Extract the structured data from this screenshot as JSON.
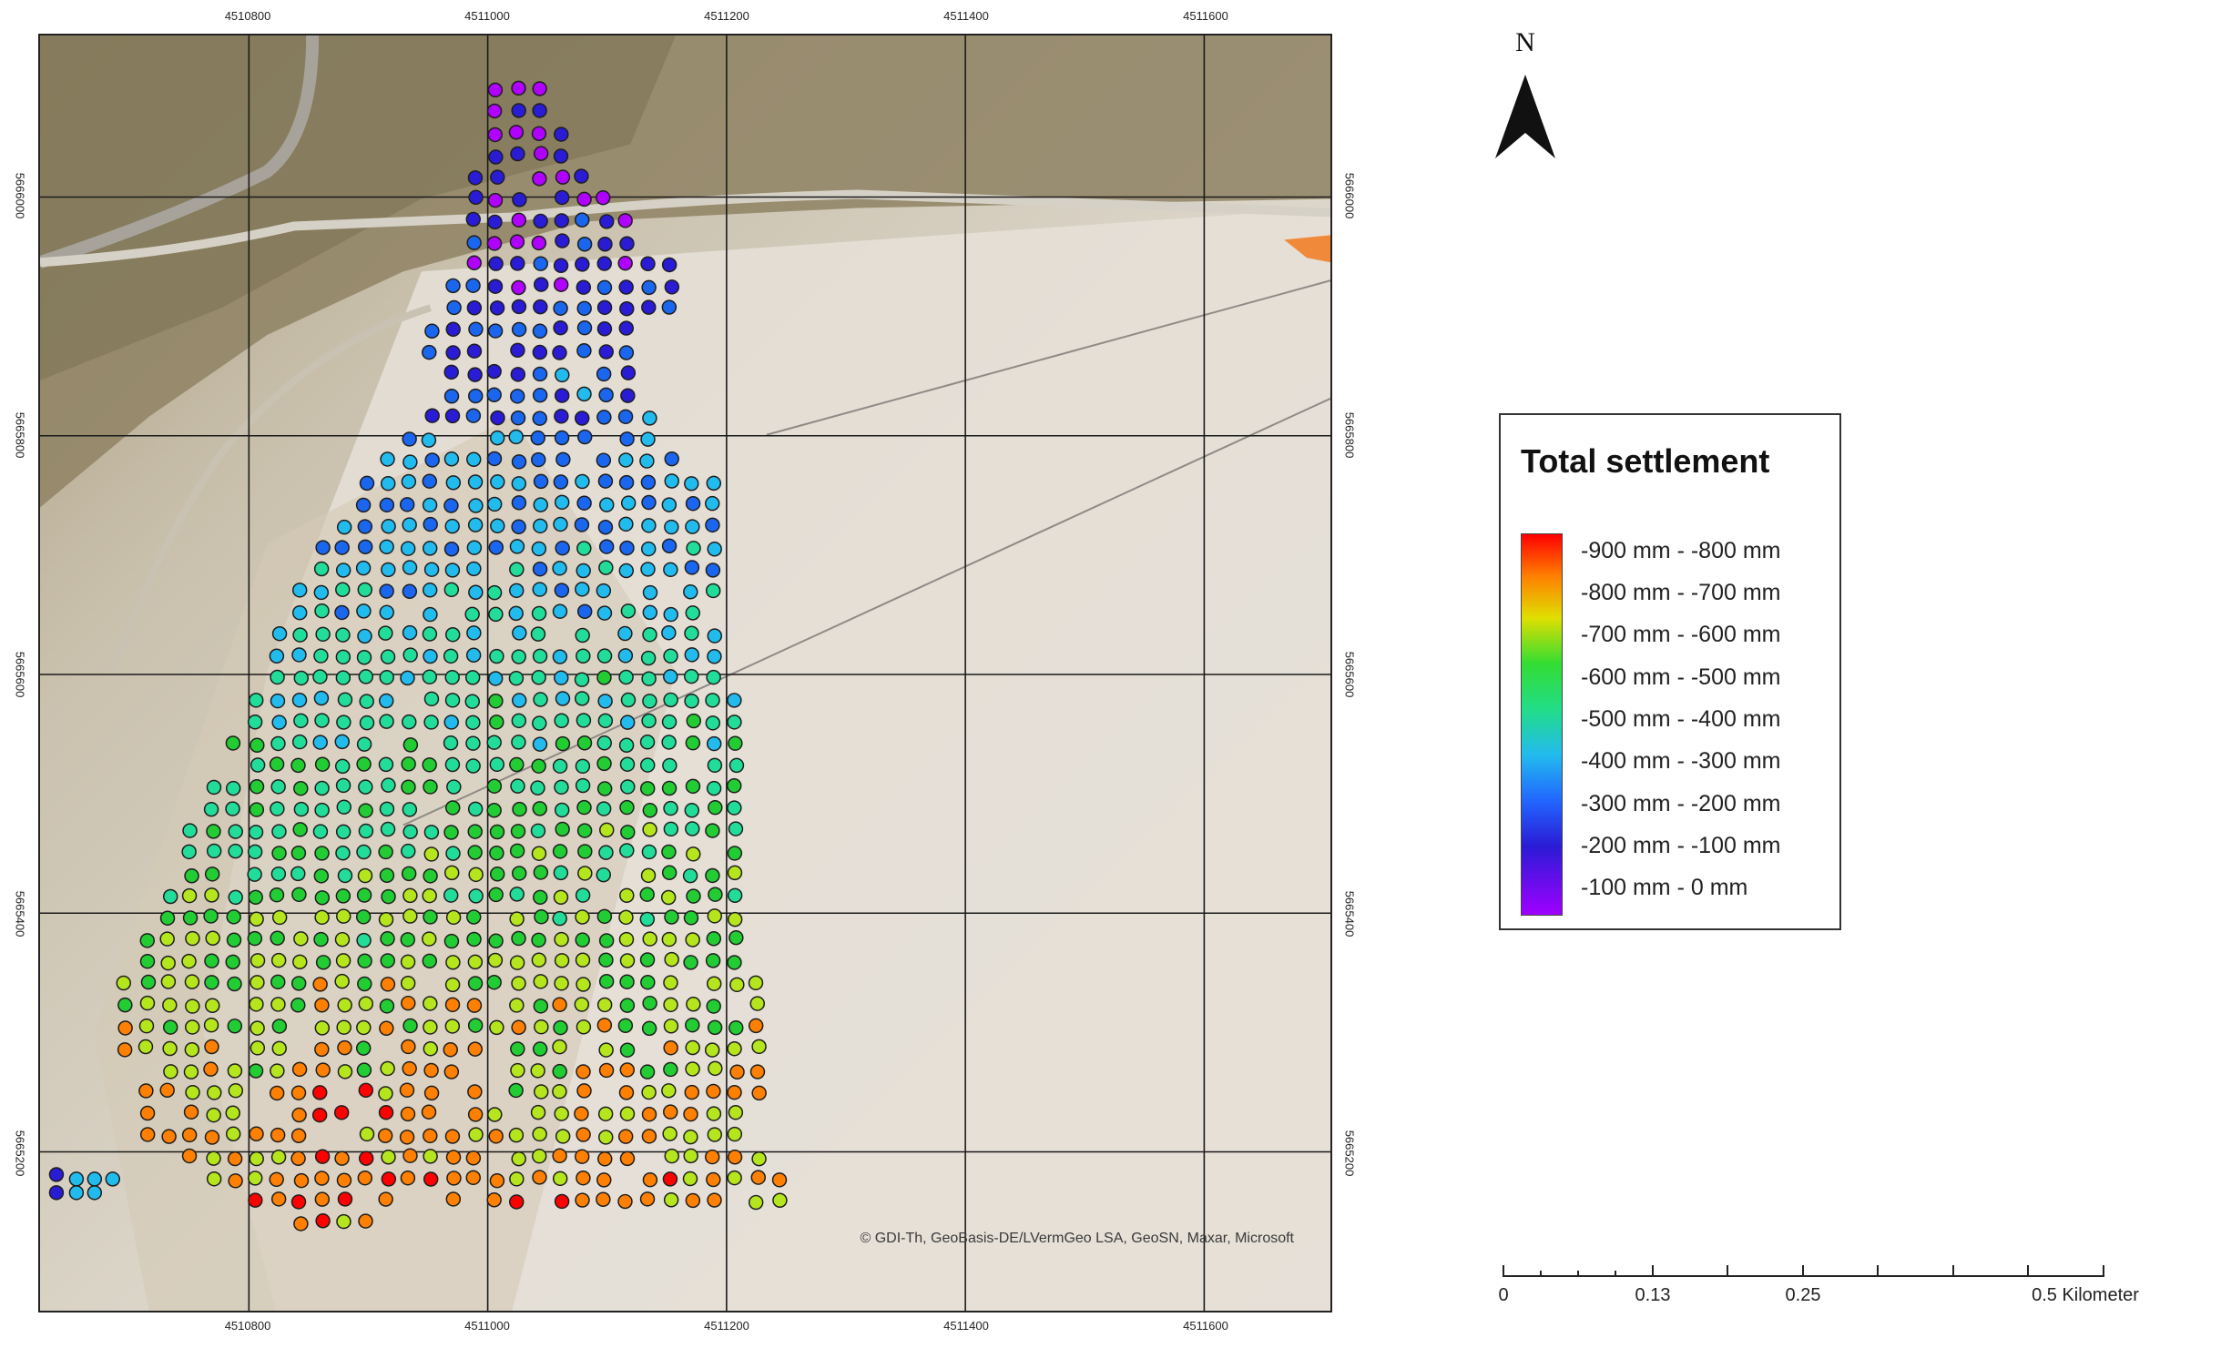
{
  "map": {
    "x_ticks": [
      "4510800",
      "4511000",
      "4511200",
      "4511400",
      "4511600"
    ],
    "y_ticks": [
      "5665200",
      "5665400",
      "5665600",
      "5665800",
      "5666000"
    ],
    "attribution": "© GDI-Th, GeoBasis-DE/LVermGeo LSA, GeoSN, Maxar, Microsoft"
  },
  "north_arrow": {
    "label": "N",
    "icon": "north-arrow-icon"
  },
  "legend": {
    "title": "Total settlement",
    "classes": [
      {
        "label": "-900 mm - -800 mm",
        "color": "#ff0000"
      },
      {
        "label": "-800 mm - -700 mm",
        "color": "#ff7f00"
      },
      {
        "label": "-700 mm - -600 mm",
        "color": "#b5e61d"
      },
      {
        "label": "-600 mm - -500 mm",
        "color": "#22cc33"
      },
      {
        "label": "-500 mm - -400 mm",
        "color": "#22dd99"
      },
      {
        "label": "-400 mm - -300 mm",
        "color": "#22bbee"
      },
      {
        "label": "-300 mm - -200 mm",
        "color": "#1a66ee"
      },
      {
        "label": "-200 mm - -100 mm",
        "color": "#2a1bd5"
      },
      {
        "label": "-100 mm - 0 mm",
        "color": "#b000ff"
      }
    ]
  },
  "scalebar": {
    "labels": [
      "0",
      "0.13",
      "0.25",
      "0.5 Kilometer"
    ]
  }
}
